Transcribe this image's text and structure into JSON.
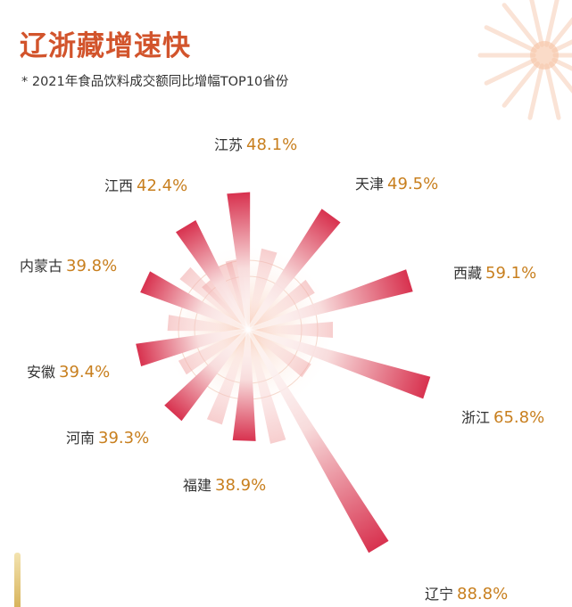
{
  "header": {
    "title": "辽浙藏增速快",
    "subtitle": "* 2021年食品饮料成交额同比增幅TOP10省份"
  },
  "colors": {
    "accent": "#d2542c",
    "bar_strong": "#d8324f",
    "bar_light": "#f8dcdc",
    "value_text": "#c87f1e",
    "label_text": "#333333"
  },
  "chart_data": {
    "type": "radial-bar",
    "title": "辽浙藏增速快",
    "subtitle": "* 2021年食品饮料成交额同比增幅TOP10省份",
    "unit": "%",
    "categories": [
      "江苏",
      "天津",
      "西藏",
      "浙江",
      "辽宁",
      "福建",
      "河南",
      "安徽",
      "内蒙古",
      "江西"
    ],
    "values": [
      48.1,
      49.5,
      59.1,
      65.8,
      88.8,
      38.9,
      39.3,
      39.4,
      39.8,
      42.4
    ],
    "value_labels": [
      "48.1%",
      "49.5%",
      "59.1%",
      "65.8%",
      "88.8%",
      "38.9%",
      "39.3%",
      "39.4%",
      "39.8%",
      "42.4%"
    ]
  }
}
